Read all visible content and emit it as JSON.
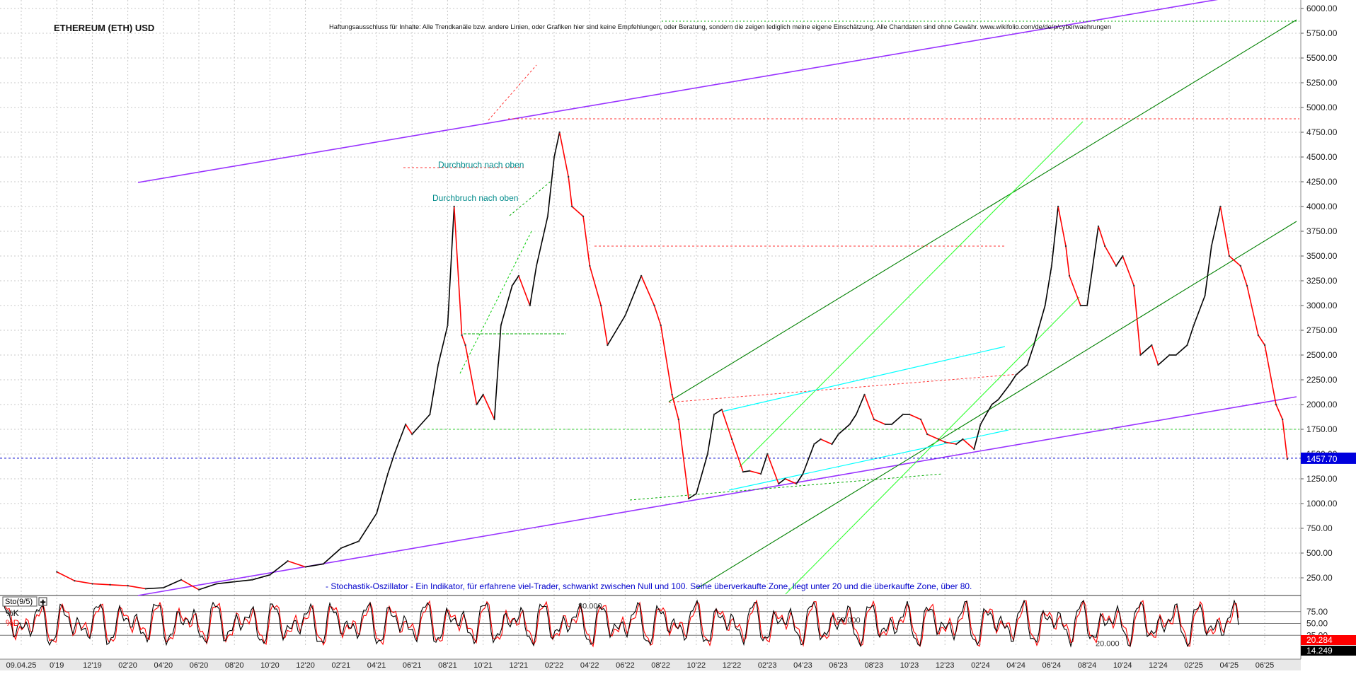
{
  "title": "ETHEREUM (ETH) USD",
  "disclaimer": "Haftungsausschluss für Inhalte: Alle Trendkanäle bzw. andere Linien, oder Grafiken hier sind keine Empfehlungen, oder Beratung, sondern die zeigen lediglich meine eigene Einschätzung. Alle Chartdaten sind ohne Gewähr. www.wikifolio.com/de/de/p/cyberwaehrungen",
  "oscillator_note": "- Stochastik-Oszillator - Ein Indikator, für erfahrene viel-Trader, schwankt zwischen Null und 100. Seine überverkaufte Zone, liegt unter 20 und die überkaufte Zone, über 80.",
  "colors": {
    "price_up": "#000000",
    "price_down": "#ff0000",
    "channel": "#9933ff",
    "trend_dark_green": "#008000",
    "trend_light_green": "#33ff33",
    "cyan": "#00ffff",
    "resistance": "#ff3333",
    "current_price_line": "#0000cc",
    "label_teal": "#008b8b",
    "note_blue": "#0000cc"
  },
  "annotations": [
    {
      "text": "Durchbruch nach oben",
      "date": "2021-06",
      "price": 4530
    },
    {
      "text": "Durchbruch nach oben",
      "date": "2021-06",
      "price": 4180
    }
  ],
  "chart_data": [
    {
      "type": "line",
      "title": "ETHEREUM (ETH) USD",
      "xlabel": "",
      "ylabel": "",
      "y_axis_side": "right",
      "ylim": [
        0,
        6100
      ],
      "y_ticks": [
        250,
        500,
        750,
        1000,
        1250,
        1500,
        1750,
        2000,
        2250,
        2500,
        2750,
        3000,
        3250,
        3500,
        3750,
        4000,
        4250,
        4500,
        4750,
        5000,
        5250,
        5500,
        5750,
        6000
      ],
      "y_tick_labels": [
        "250.00",
        "500.00",
        "750.00",
        "1000.00",
        "1250.00",
        "1500.00",
        "1750.00",
        "2000.00",
        "2250.00",
        "2500.00",
        "2750.00",
        "3000.00",
        "3250.00",
        "3500.00",
        "3750.00",
        "4000.00",
        "4250.00",
        "4500.00",
        "4750.00",
        "5000.00",
        "5250.00",
        "5500.00",
        "5750.00",
        "6000.00"
      ],
      "grid": true,
      "x_tick_labels": [
        "09.04.25",
        "0'19",
        "12'19",
        "02'20",
        "04'20",
        "06'20",
        "08'20",
        "10'20",
        "12'20",
        "02'21",
        "04'21",
        "06'21",
        "08'21",
        "10'21",
        "12'21",
        "02'22",
        "04'22",
        "06'22",
        "08'22",
        "10'22",
        "12'22",
        "02'23",
        "04'23",
        "06'23",
        "08'23",
        "10'23",
        "12'23",
        "02'24",
        "04'24",
        "06'24",
        "08'24",
        "10'24",
        "12'24",
        "02'25",
        "04'25",
        "06'25"
      ],
      "current_price": 1457.7,
      "current_price_label": "1457.70",
      "series": [
        {
          "values_approx": true,
          "x": [
            "2019-07",
            "2019-08",
            "2019-09",
            "2019-10",
            "2019-11",
            "2019-12",
            "2020-01",
            "2020-02",
            "2020-03",
            "2020-04",
            "2020-05",
            "2020-06",
            "2020-07",
            "2020-08",
            "2020-09",
            "2020-10",
            "2020-11",
            "2020-12",
            "2021-01",
            "2021-01-20",
            "2021-02",
            "2021-02-20",
            "2021-03",
            "2021-04",
            "2021-04-15",
            "2021-05",
            "2021-05-12",
            "2021-05-25",
            "2021-06",
            "2021-06-20",
            "2021-07",
            "2021-07-20",
            "2021-08",
            "2021-08-20",
            "2021-09",
            "2021-09-20",
            "2021-10",
            "2021-10-20",
            "2021-11",
            "2021-11-10",
            "2021-11-25",
            "2021-12",
            "2021-12-20",
            "2022-01",
            "2022-01-20",
            "2022-02",
            "2022-03",
            "2022-03-28",
            "2022-04-20",
            "2022-05",
            "2022-05-20",
            "2022-06",
            "2022-06-18",
            "2022-07",
            "2022-07-20",
            "2022-08",
            "2022-08-14",
            "2022-09",
            "2022-09-20",
            "2022-10",
            "2022-10-20",
            "2022-11",
            "2022-11-20",
            "2022-12",
            "2022-12-20",
            "2023-01",
            "2023-01-20",
            "2023-02",
            "2023-02-20",
            "2023-03",
            "2023-03-20",
            "2023-04",
            "2023-04-15",
            "2023-05",
            "2023-05-20",
            "2023-06",
            "2023-06-20",
            "2023-07",
            "2023-07-20",
            "2023-08",
            "2023-08-20",
            "2023-09",
            "2023-09-20",
            "2023-10",
            "2023-10-20",
            "2023-11",
            "2023-11-20",
            "2023-12",
            "2023-12-20",
            "2024-01",
            "2024-01-20",
            "2024-02",
            "2024-02-20",
            "2024-03",
            "2024-03-12",
            "2024-03-25",
            "2024-04",
            "2024-04-20",
            "2024-05",
            "2024-05-20",
            "2024-06",
            "2024-06-20",
            "2024-07",
            "2024-07-20",
            "2024-08",
            "2024-08-20",
            "2024-09",
            "2024-09-20",
            "2024-10",
            "2024-10-20",
            "2024-11",
            "2024-11-20",
            "2024-12",
            "2024-12-16",
            "2025-01",
            "2025-01-20",
            "2025-02",
            "2025-02-20",
            "2025-03",
            "2025-03-20",
            "2025-04",
            "2025-04-09"
          ],
          "values": [
            310,
            220,
            190,
            180,
            170,
            140,
            150,
            230,
            130,
            190,
            210,
            230,
            280,
            420,
            360,
            390,
            550,
            620,
            900,
            1300,
            1500,
            1800,
            1700,
            1900,
            2400,
            2800,
            4000,
            2700,
            2600,
            2000,
            2100,
            1850,
            2800,
            3200,
            3300,
            3000,
            3400,
            3900,
            4500,
            4750,
            4300,
            4000,
            3900,
            3400,
            3000,
            2600,
            2900,
            3300,
            3000,
            2800,
            2100,
            1850,
            1050,
            1100,
            1500,
            1900,
            1950,
            1650,
            1320,
            1330,
            1300,
            1500,
            1200,
            1250,
            1200,
            1300,
            1600,
            1650,
            1600,
            1700,
            1800,
            1900,
            2100,
            1850,
            1800,
            1800,
            1900,
            1900,
            1850,
            1700,
            1650,
            1620,
            1600,
            1650,
            1550,
            1800,
            2000,
            2050,
            2200,
            2300,
            2400,
            2600,
            3000,
            3400,
            4000,
            3600,
            3300,
            3000,
            3000,
            3800,
            3600,
            3400,
            3500,
            3200,
            2500,
            2600,
            2400,
            2500,
            2500,
            2600,
            2800,
            3100,
            3600,
            4000,
            3500,
            3400,
            3200,
            2700,
            2600,
            2000,
            1850,
            1450
          ]
        }
      ],
      "trendlines": [
        {
          "kind": "channel-upper",
          "from": {
            "date": "2020-01",
            "price": 4220
          },
          "to": {
            "date": "2025-08",
            "price": 6300
          }
        },
        {
          "kind": "channel-lower",
          "from": {
            "date": "2020-01",
            "price": 0
          },
          "to": {
            "date": "2025-08",
            "price": 2060
          }
        },
        {
          "kind": "resistance",
          "price": 4870
        },
        {
          "kind": "support",
          "price": 1720
        },
        {
          "kind": "current-price",
          "price": 1457.7
        }
      ]
    },
    {
      "type": "line",
      "title": "Sto(9/5)",
      "series": [
        {
          "name": "%K"
        },
        {
          "name": "%D"
        }
      ],
      "ylim": [
        0,
        100
      ],
      "y_ticks": [
        25,
        50,
        75
      ],
      "y_tick_labels": [
        "25.00",
        "50.00",
        "75.00"
      ],
      "levels": [
        20,
        50,
        80
      ],
      "level_labels": [
        "20.000",
        "50.000",
        "80.000"
      ],
      "last_values": [
        20.284,
        14.249
      ],
      "last_value_labels": [
        "20.284",
        "14.249"
      ]
    }
  ]
}
